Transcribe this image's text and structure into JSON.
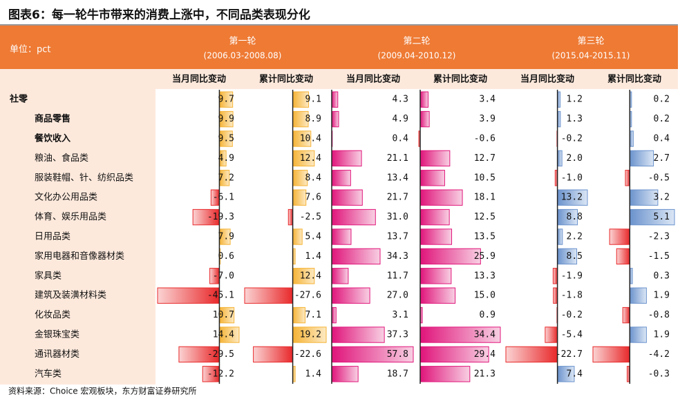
{
  "title": "图表6：每一轮牛市带来的消费上涨中，不同品类表现分化",
  "unit": "单位：pct",
  "groups": [
    {
      "name": "第一轮",
      "period": "(2006.03-2008.08)"
    },
    {
      "name": "第二轮",
      "period": "(2009.04-2010.12)"
    },
    {
      "name": "第三轮",
      "period": "(2015.04-2015.11)"
    }
  ],
  "columns": [
    "当月同比变动",
    "累计同比变动",
    "当月同比变动",
    "累计同比变动",
    "当月同比变动",
    "累计同比变动"
  ],
  "rows": [
    {
      "label": "社零",
      "values": [
        9.7,
        9.1,
        4.3,
        3.4,
        1.2,
        0.2
      ]
    },
    {
      "label": "商品零售",
      "values": [
        9.9,
        8.9,
        4.9,
        3.9,
        1.3,
        0.2
      ]
    },
    {
      "label": "餐饮收入",
      "values": [
        9.5,
        10.4,
        0.4,
        -0.6,
        -0.2,
        0.4
      ]
    },
    {
      "label": "粮油、食品类",
      "values": [
        4.9,
        12.4,
        21.1,
        12.7,
        {
          "value": 2,
          "label": "2.0"
        },
        2.7
      ]
    },
    {
      "label": "服装鞋帽、针、纺织品类",
      "values": [
        7.2,
        8.4,
        13.4,
        10.5,
        {
          "value": -1,
          "label": "-1.0"
        },
        -0.5
      ]
    },
    {
      "label": "文化办公用品类",
      "values": [
        -6.1,
        7.6,
        21.7,
        18.1,
        13.2,
        3.2
      ]
    },
    {
      "label": "体育、娱乐用品类",
      "values": [
        -19.3,
        -2.5,
        {
          "value": 31,
          "label": "31.0"
        },
        12.5,
        8.8,
        5.1
      ]
    },
    {
      "label": "日用品类",
      "values": [
        7.9,
        5.4,
        13.7,
        13.5,
        2.2,
        -2.3
      ]
    },
    {
      "label": "家用电器和音像器材类",
      "values": [
        0.6,
        1.4,
        34.3,
        25.9,
        8.5,
        -1.5
      ]
    },
    {
      "label": "家具类",
      "values": [
        {
          "value": -7,
          "label": "-7.0"
        },
        12.4,
        11.7,
        13.3,
        -1.9,
        0.3
      ]
    },
    {
      "label": "建筑及装潢材料类",
      "values": [
        -45.1,
        -27.6,
        {
          "value": 27,
          "label": "27.0"
        },
        {
          "value": 15,
          "label": "15.0"
        },
        -1.8,
        1.9
      ]
    },
    {
      "label": "化妆品类",
      "values": [
        10.7,
        7.1,
        3.1,
        0.9,
        -0.2,
        -0.8
      ]
    },
    {
      "label": "金银珠宝类",
      "values": [
        14.4,
        19.2,
        37.3,
        34.4,
        -5.4,
        1.9
      ]
    },
    {
      "label": "通讯器材类",
      "values": [
        -29.5,
        -22.6,
        57.8,
        29.4,
        -22.7,
        -4.2
      ]
    },
    {
      "label": "汽车类",
      "values": [
        -12.2,
        1.4,
        18.7,
        21.3,
        7.4,
        -0.3
      ]
    }
  ],
  "source": "资料来源：Choice 宏观板块，东方财富证券研究所"
}
